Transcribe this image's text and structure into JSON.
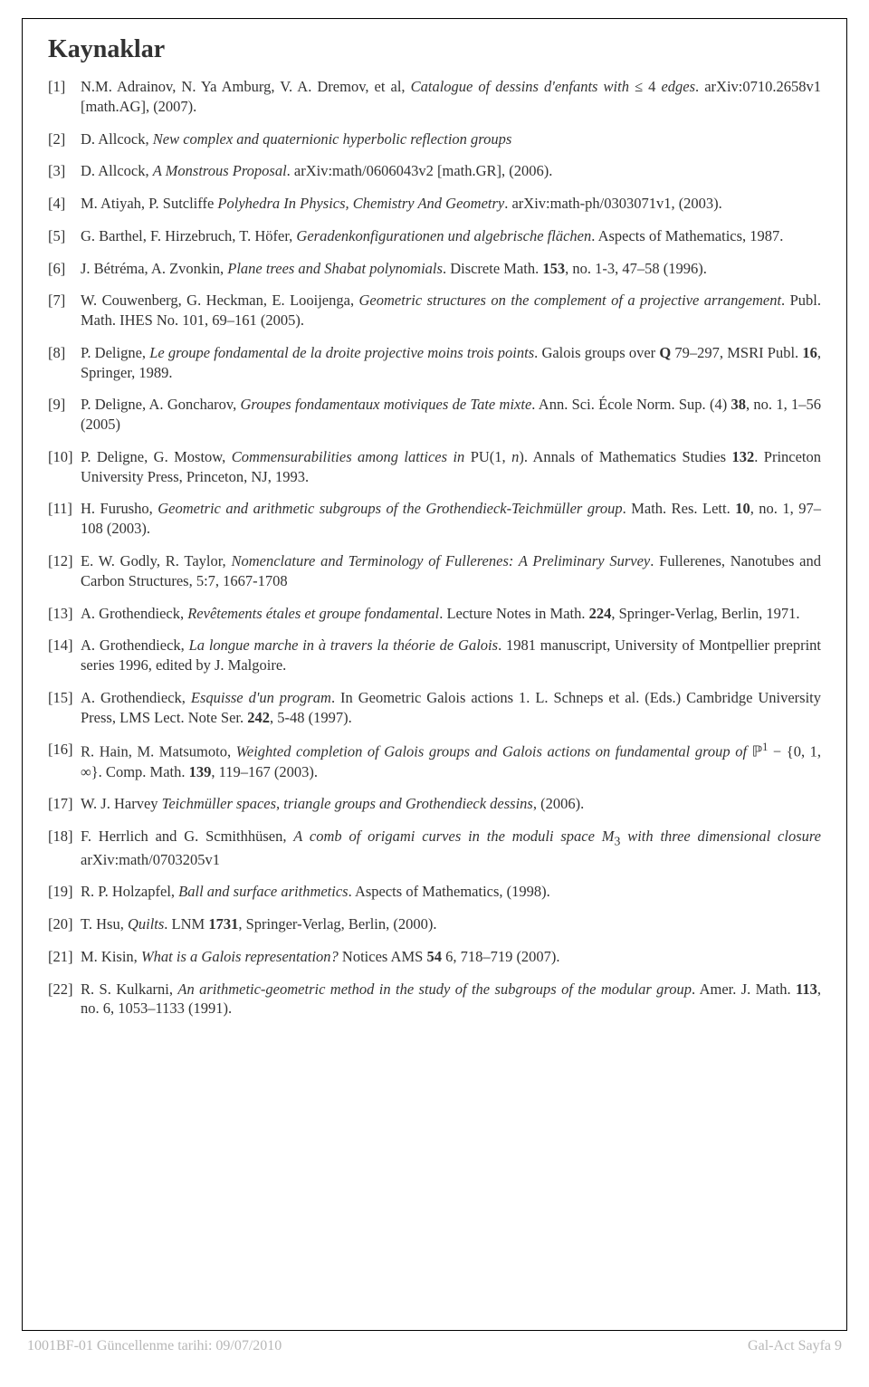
{
  "title": "Kaynaklar",
  "footer_left": "1001BF-01 Güncellenme tarihi: 09/07/2010",
  "footer_right": "Gal-Act Sayfa 9",
  "references": [
    {
      "html": "N.M. Adrainov, N. Ya Amburg, V. A. Dremov, et al, <span class='italic'>Catalogue of dessins d'enfants with</span> ≤ 4 <span class='italic'>edges</span>. arXiv:0710.2658v1 [math.AG], (2007)."
    },
    {
      "html": "D. Allcock, <span class='italic'>New complex and quaternionic hyperbolic reflection groups</span>"
    },
    {
      "html": "D. Allcock, <span class='italic'>A Monstrous Proposal</span>. arXiv:math/0606043v2 [math.GR], (2006)."
    },
    {
      "html": "M. Atiyah, P. Sutcliffe <span class='italic'>Polyhedra In Physics, Chemistry And Geometry</span>. arXiv:math-ph/0303071v1, (2003)."
    },
    {
      "html": "G. Barthel, F. Hirzebruch, T. Höfer, <span class='italic'>Geradenkonfigurationen und algebrische flächen</span>. Aspects of Mathematics, 1987."
    },
    {
      "html": "J. Bétréma, A. Zvonkin, <span class='italic'>Plane trees and Shabat polynomials</span>. Discrete Math. <span class='bold'>153</span>, no. 1-3, 47–58 (1996)."
    },
    {
      "html": "W. Couwenberg, G. Heckman, E. Looijenga, <span class='italic'>Geometric structures on the complement of a projective arrangement</span>. Publ. Math. IHES No. 101, 69–161 (2005)."
    },
    {
      "html": "P. Deligne, <span class='italic'>Le groupe fondamental de la droite projective moins trois points</span>. Galois groups over <span class='bold'>Q</span> 79–297, MSRI Publ. <span class='bold'>16</span>, Springer, 1989."
    },
    {
      "html": "P. Deligne, A. Goncharov, <span class='italic'>Groupes fondamentaux motiviques de Tate mixte</span>. Ann. Sci. École Norm. Sup. (4) <span class='bold'>38</span>, no. 1, 1–56 (2005)"
    },
    {
      "html": "P. Deligne, G. Mostow, <span class='italic'>Commensurabilities among lattices in</span> PU(1, <span class='italic'>n</span>). Annals of Mathematics Studies <span class='bold'>132</span>. Princeton University Press, Princeton, NJ, 1993."
    },
    {
      "html": "H. Furusho, <span class='italic'>Geometric and arithmetic subgroups of the Grothendieck-Teichmüller group</span>. Math. Res. Lett. <span class='bold'>10</span>, no. 1, 97–108 (2003)."
    },
    {
      "html": "E. W. Godly, R. Taylor, <span class='italic'>Nomenclature and Terminology of Fullerenes: A Preliminary Survey</span>. Fullerenes, Nanotubes and Carbon Structures, 5:7, 1667-1708"
    },
    {
      "html": "A. Grothendieck, <span class='italic'>Revêtements étales et groupe fondamental</span>. Lecture Notes in Math. <span class='bold'>224</span>, Springer-Verlag, Berlin, 1971."
    },
    {
      "html": "A. Grothendieck, <span class='italic'>La longue marche in à travers la théorie de Galois</span>. 1981 manuscript, University of Montpellier preprint series 1996, edited by J. Malgoire."
    },
    {
      "html": "A. Grothendieck, <span class='italic'>Esquisse d'un program</span>. In Geometric Galois actions 1. L. Schneps et al. (Eds.) Cambridge University Press, LMS Lect. Note Ser. <span class='bold'>242</span>, 5-48 (1997)."
    },
    {
      "html": "R. Hain, M. Matsumoto, <span class='italic'>Weighted completion of Galois groups and Galois actions on fundamental group of</span> <span class='bb'>ℙ</span><sup>1</sup> − {0, 1, ∞}. Comp. Math. <span class='bold'>139</span>, 119–167 (2003)."
    },
    {
      "html": "W. J. Harvey <span class='italic'>Teichmüller spaces, triangle groups and Grothendieck dessins</span>, (2006)."
    },
    {
      "html": "F. Herrlich and G. Scmithhüsen, <span class='italic'>A comb of origami curves in the moduli space M</span><sub>3</sub> <span class='italic'>with three dimensional closure</span> arXiv:math/0703205v1"
    },
    {
      "html": "R. P. Holzapfel, <span class='italic'>Ball and surface arithmetics</span>. Aspects of Mathematics, (1998)."
    },
    {
      "html": "T. Hsu, <span class='italic'>Quilts</span>. LNM <span class='bold'>1731</span>, Springer-Verlag, Berlin, (2000)."
    },
    {
      "html": "M. Kisin, <span class='italic'>What is a Galois representation?</span> Notices AMS <span class='bold'>54</span> 6, 718–719 (2007)."
    },
    {
      "html": "R. S. Kulkarni, <span class='italic'>An arithmetic-geometric method in the study of the subgroups of the modular group</span>. Amer. J. Math. <span class='bold'>113</span>, no. 6, 1053–1133 (1991)."
    }
  ]
}
